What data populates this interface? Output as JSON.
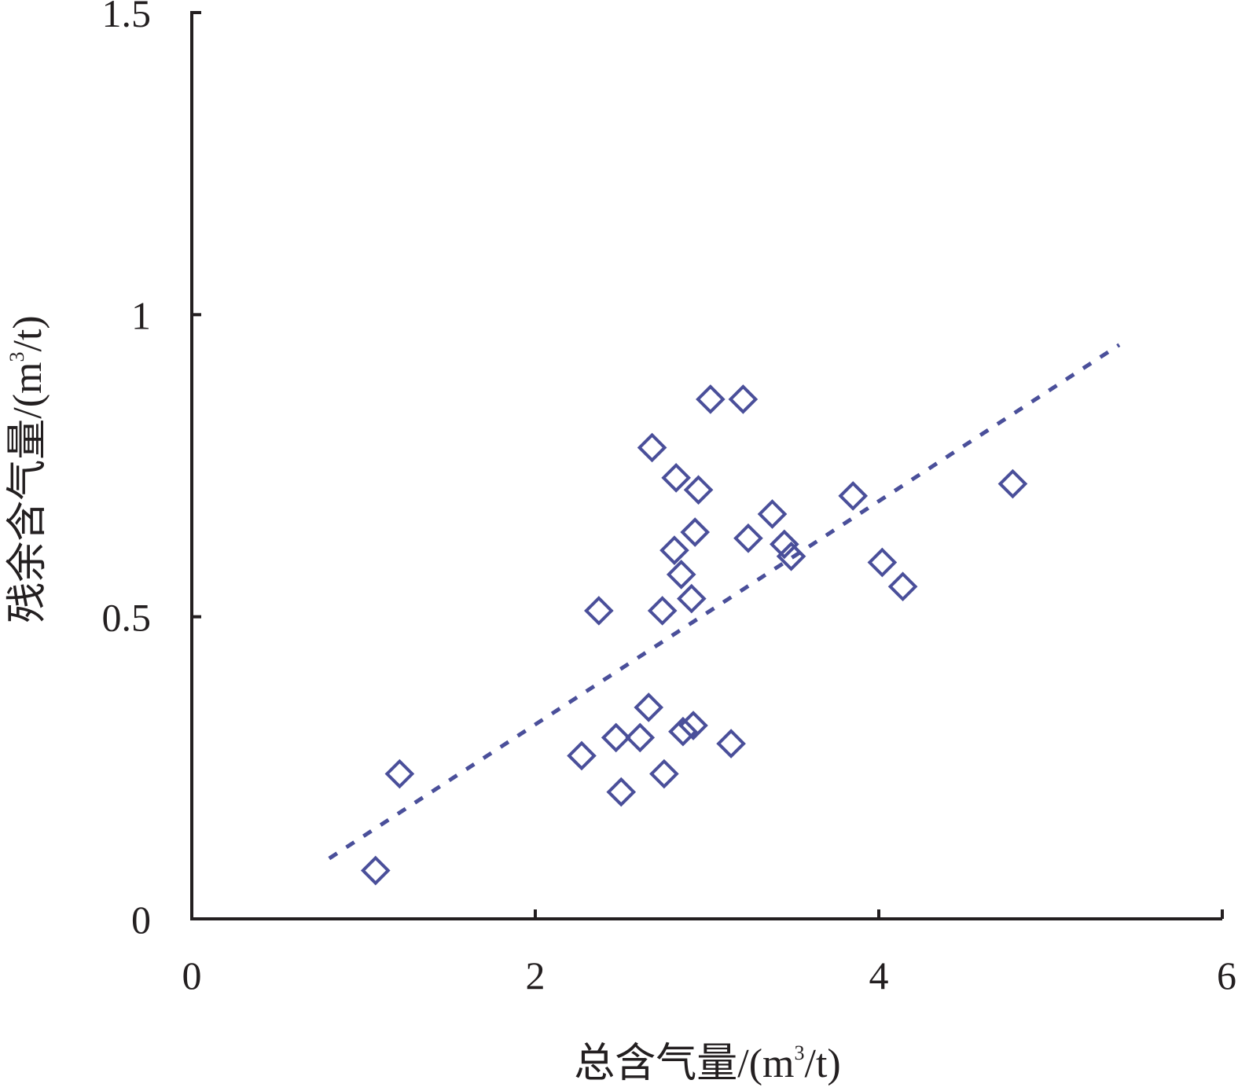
{
  "chart_data": {
    "type": "scatter",
    "xlabel": {
      "prefix": "总含气量/(m",
      "sup": "3",
      "suffix": "/t)"
    },
    "ylabel": {
      "prefix": "残余含气量/(m",
      "sup": "3",
      "suffix": "/t)"
    },
    "xlim": [
      0,
      6
    ],
    "ylim": [
      0,
      1.5
    ],
    "x_ticks": [
      {
        "value": 0,
        "label": "0"
      },
      {
        "value": 2,
        "label": "2"
      },
      {
        "value": 4,
        "label": "4"
      },
      {
        "value": 6,
        "label": "6"
      }
    ],
    "y_ticks": [
      {
        "value": 0,
        "label": "0"
      },
      {
        "value": 0.5,
        "label": "0.5"
      },
      {
        "value": 1,
        "label": "1"
      },
      {
        "value": 1.5,
        "label": "1.5"
      }
    ],
    "grid": false,
    "legend": "none",
    "colors": {
      "axis": "#231f20",
      "marker": "#4a4f9a",
      "trendline": "#4a4f9a"
    },
    "series": [
      {
        "marker": "diamond-open",
        "points": [
          {
            "x": 1.07,
            "y": 0.08
          },
          {
            "x": 1.21,
            "y": 0.24
          },
          {
            "x": 2.27,
            "y": 0.27
          },
          {
            "x": 2.37,
            "y": 0.51
          },
          {
            "x": 2.47,
            "y": 0.3
          },
          {
            "x": 2.5,
            "y": 0.21
          },
          {
            "x": 2.61,
            "y": 0.3
          },
          {
            "x": 2.66,
            "y": 0.35
          },
          {
            "x": 2.68,
            "y": 0.78
          },
          {
            "x": 2.74,
            "y": 0.51
          },
          {
            "x": 2.75,
            "y": 0.24
          },
          {
            "x": 2.81,
            "y": 0.61
          },
          {
            "x": 2.82,
            "y": 0.73
          },
          {
            "x": 2.85,
            "y": 0.57
          },
          {
            "x": 2.86,
            "y": 0.31
          },
          {
            "x": 2.91,
            "y": 0.53
          },
          {
            "x": 2.92,
            "y": 0.32
          },
          {
            "x": 2.93,
            "y": 0.64
          },
          {
            "x": 2.95,
            "y": 0.71
          },
          {
            "x": 3.02,
            "y": 0.86
          },
          {
            "x": 3.14,
            "y": 0.29
          },
          {
            "x": 3.21,
            "y": 0.86
          },
          {
            "x": 3.24,
            "y": 0.63
          },
          {
            "x": 3.38,
            "y": 0.67
          },
          {
            "x": 3.45,
            "y": 0.62
          },
          {
            "x": 3.49,
            "y": 0.6
          },
          {
            "x": 3.85,
            "y": 0.7
          },
          {
            "x": 4.02,
            "y": 0.59
          },
          {
            "x": 4.14,
            "y": 0.55
          },
          {
            "x": 4.78,
            "y": 0.72
          }
        ]
      }
    ],
    "trendline": {
      "style": "dotted",
      "from": {
        "x": 0.8,
        "y": 0.1
      },
      "to": {
        "x": 5.4,
        "y": 0.95
      }
    }
  }
}
